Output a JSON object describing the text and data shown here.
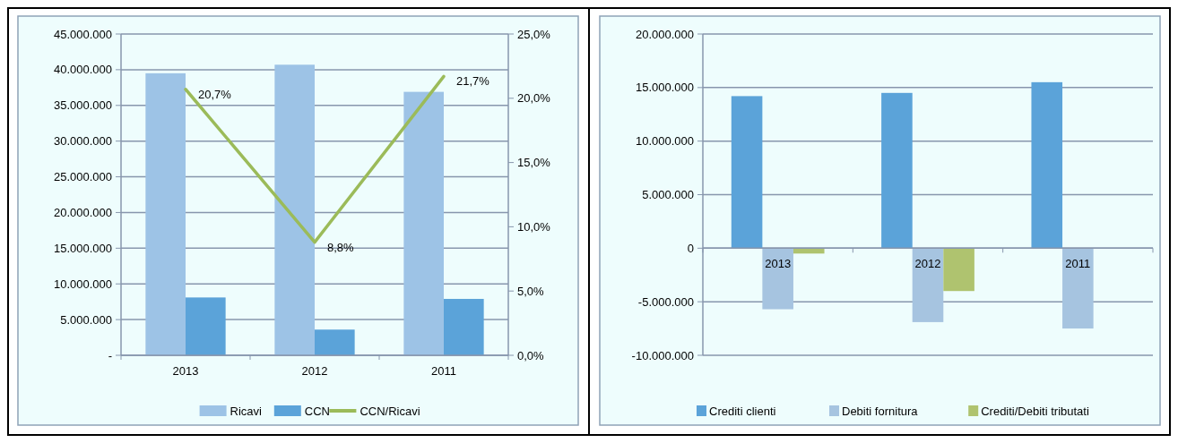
{
  "chart_data": [
    {
      "type": "bar",
      "categories": [
        "2013",
        "2012",
        "2011"
      ],
      "series": [
        {
          "name": "Ricavi",
          "color": "#9dc3e6",
          "values": [
            39500000,
            40700000,
            36900000
          ]
        },
        {
          "name": "CCN",
          "color": "#5ba3d9",
          "values": [
            8100000,
            3600000,
            7900000
          ]
        },
        {
          "name": "CCN/Ricavi",
          "type": "line",
          "axis": "y2",
          "color": "#9bbb59",
          "values": [
            20.7,
            8.8,
            21.7
          ],
          "value_labels": [
            "20,7%",
            "8,8%",
            "21,7%"
          ]
        }
      ],
      "ylim": [
        0,
        45000000
      ],
      "yticks": [
        {
          "value": 0,
          "label": "-"
        },
        {
          "value": 5000000,
          "label": "5.000.000"
        },
        {
          "value": 10000000,
          "label": "10.000.000"
        },
        {
          "value": 15000000,
          "label": "15.000.000"
        },
        {
          "value": 20000000,
          "label": "20.000.000"
        },
        {
          "value": 25000000,
          "label": "25.000.000"
        },
        {
          "value": 30000000,
          "label": "30.000.000"
        },
        {
          "value": 35000000,
          "label": "35.000.000"
        },
        {
          "value": 40000000,
          "label": "40.000.000"
        },
        {
          "value": 45000000,
          "label": "45.000.000"
        }
      ],
      "y2lim": [
        0,
        25
      ],
      "y2ticks": [
        {
          "value": 0,
          "label": "0,0%"
        },
        {
          "value": 5,
          "label": "5,0%"
        },
        {
          "value": 10,
          "label": "10,0%"
        },
        {
          "value": 15,
          "label": "15,0%"
        },
        {
          "value": 20,
          "label": "20,0%"
        },
        {
          "value": 25,
          "label": "25,0%"
        }
      ],
      "grid": "y",
      "legend": "bottom"
    },
    {
      "type": "bar",
      "categories": [
        "2013",
        "2012",
        "2011"
      ],
      "series": [
        {
          "name": "Crediti clienti",
          "color": "#5ba3d9",
          "values": [
            14200000,
            14500000,
            15500000
          ]
        },
        {
          "name": "Debiti fornitura",
          "color": "#a6c4e0",
          "values": [
            -5700000,
            -6900000,
            -7500000
          ]
        },
        {
          "name": "Crediti/Debiti tributati",
          "color": "#afc36f",
          "values": [
            -500000,
            -4000000,
            null
          ]
        }
      ],
      "ylim": [
        -10000000,
        20000000
      ],
      "yticks": [
        {
          "value": -10000000,
          "label": "-10.000.000"
        },
        {
          "value": -5000000,
          "label": "-5.000.000"
        },
        {
          "value": 0,
          "label": "0"
        },
        {
          "value": 5000000,
          "label": "5.000.000"
        },
        {
          "value": 10000000,
          "label": "10.000.000"
        },
        {
          "value": 15000000,
          "label": "15.000.000"
        },
        {
          "value": 20000000,
          "label": "20.000.000"
        }
      ],
      "grid": "y",
      "legend": "bottom"
    }
  ]
}
